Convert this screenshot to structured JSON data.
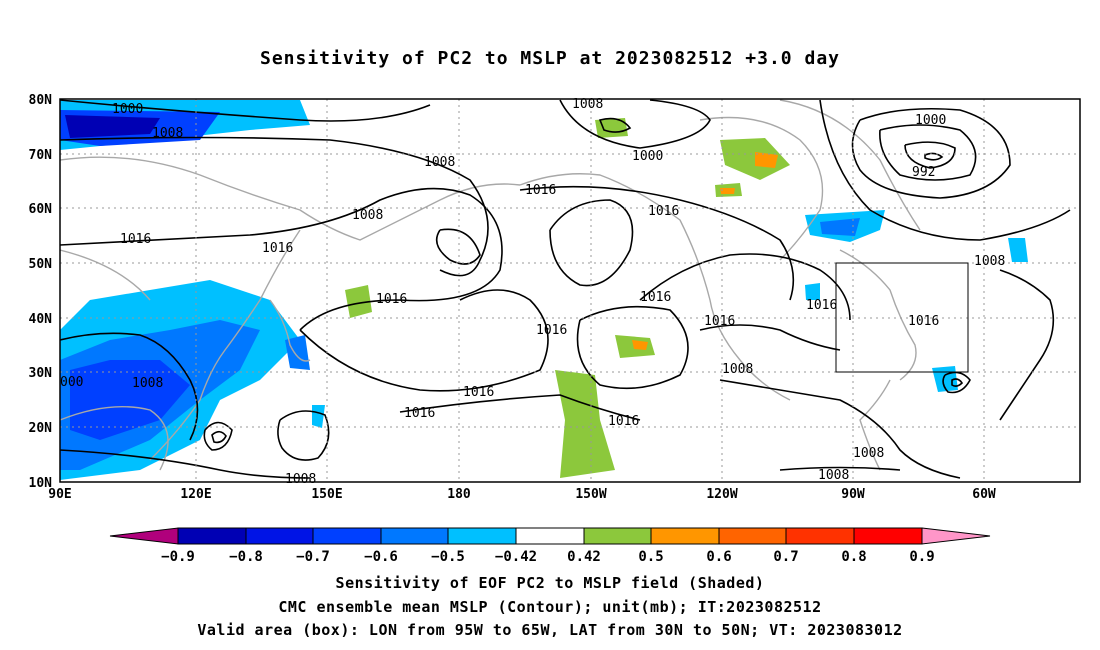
{
  "title": "Sensitivity of PC2 to MSLP at 2023082512 +3.0 day",
  "map": {
    "lat_ticks": [
      "80N",
      "70N",
      "60N",
      "50N",
      "40N",
      "30N",
      "20N",
      "10N"
    ],
    "lon_ticks": [
      "90E",
      "120E",
      "150E",
      "180",
      "150W",
      "120W",
      "90W",
      "60W"
    ],
    "valid_box": {
      "lon_min": "95W",
      "lon_max": "65W",
      "lat_min": "30N",
      "lat_max": "50N"
    },
    "contour_labels": [
      "1000",
      "1008",
      "1008",
      "1016",
      "1008",
      "1016",
      "1016",
      "1008",
      "1016",
      "1016",
      "1016",
      "1008",
      "1016",
      "1000",
      "1016",
      "1016",
      "1016",
      "1000",
      "992",
      "1008",
      "1016",
      "1016",
      "1008",
      "1008",
      "1008",
      "000"
    ]
  },
  "colorbar": {
    "labels": [
      "−0.9",
      "−0.8",
      "−0.7",
      "−0.6",
      "−0.5",
      "−0.42",
      "0.42",
      "0.5",
      "0.6",
      "0.7",
      "0.8",
      "0.9"
    ],
    "colors": [
      "#b0007c",
      "#0000b4",
      "#0014e6",
      "#0040ff",
      "#0078ff",
      "#00c0ff",
      "#ffffff",
      "#8cc83c",
      "#ff9600",
      "#ff6400",
      "#ff3200",
      "#ff0000",
      "#ff96c8"
    ]
  },
  "captions": [
    "Sensitivity of EOF PC2 to MSLP field (Shaded)",
    "CMC ensemble mean MSLP (Contour); unit(mb); IT:2023082512",
    "Valid area (box): LON from 95W to 65W, LAT from 30N to 50N; VT: 2023083012"
  ]
}
